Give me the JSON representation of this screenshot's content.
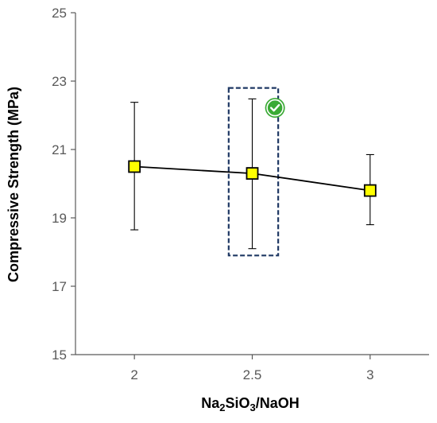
{
  "chart_data": {
    "type": "line",
    "title": "",
    "xlabel_parts": [
      {
        "text": "Na",
        "sub": false
      },
      {
        "text": "2",
        "sub": true
      },
      {
        "text": "SiO",
        "sub": false
      },
      {
        "text": "3",
        "sub": true
      },
      {
        "text": "/NaOH",
        "sub": false
      }
    ],
    "ylabel": "Compressive Strength (MPa)",
    "x_ticks": [
      "2",
      "2.5",
      "3"
    ],
    "x_tick_values": [
      2,
      2.5,
      3
    ],
    "xlim": [
      1.75,
      3.25
    ],
    "y_ticks": [
      "15",
      "17",
      "19",
      "21",
      "23",
      "25"
    ],
    "y_tick_values": [
      15,
      17,
      19,
      21,
      23,
      25
    ],
    "ylim": [
      15,
      25
    ],
    "grid": false,
    "legend": "none",
    "series": [
      {
        "x": [
          2,
          2.5,
          3
        ],
        "y": [
          20.5,
          20.3,
          19.8
        ],
        "y_err_low": [
          18.65,
          18.1,
          18.8
        ],
        "y_err_high": [
          22.38,
          22.48,
          20.85
        ],
        "marker": "square",
        "marker_fill": "#ffff00",
        "line_color": "#000000"
      }
    ],
    "annotation": {
      "type": "dashed-box-highlight",
      "x_range": [
        2.4,
        2.61
      ],
      "y_range": [
        17.9,
        22.8
      ],
      "color": "#1f3864",
      "badge": "check-icon",
      "badge_color": "#3aaa35"
    },
    "colors": {
      "axis": "#595959",
      "tick_text": "#595959",
      "title_text": "#000000"
    }
  }
}
